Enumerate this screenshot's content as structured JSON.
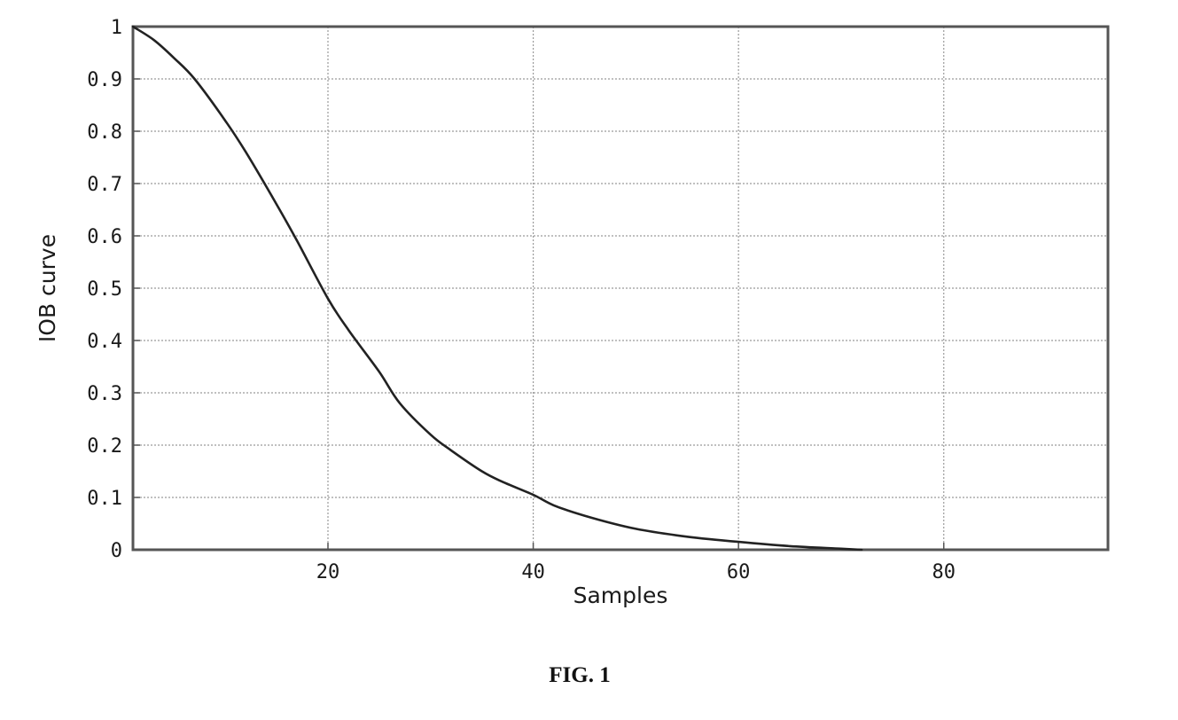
{
  "figure": {
    "caption": "FIG. 1"
  },
  "chart_data": {
    "type": "line",
    "title": "",
    "xlabel": "Samples",
    "ylabel": "IOB curve",
    "xlim": [
      1,
      96
    ],
    "ylim": [
      0,
      1
    ],
    "grid": true,
    "xticks": [
      20,
      40,
      60,
      80
    ],
    "xtick_labels": [
      "20",
      "40",
      "60",
      "80"
    ],
    "yticks": [
      0,
      0.1,
      0.2,
      0.3,
      0.4,
      0.5,
      0.6,
      0.7,
      0.8,
      0.9,
      1
    ],
    "ytick_labels": [
      "0",
      "0.1",
      "0.2",
      "0.3",
      "0.4",
      "0.5",
      "0.6",
      "0.7",
      "0.8",
      "0.9",
      "1"
    ],
    "series": [
      {
        "x": [
          1,
          3,
          5,
          7,
          10,
          12,
          15,
          17,
          20,
          22,
          25,
          27,
          30,
          32,
          35,
          37,
          40,
          42,
          45,
          50,
          55,
          60,
          65,
          70,
          72
        ],
        "values": [
          1.0,
          0.975,
          0.94,
          0.9,
          0.82,
          0.76,
          0.66,
          0.59,
          0.48,
          0.42,
          0.34,
          0.28,
          0.22,
          0.19,
          0.15,
          0.13,
          0.105,
          0.085,
          0.065,
          0.04,
          0.025,
          0.015,
          0.007,
          0.002,
          0.0
        ]
      }
    ],
    "colors": {
      "line": "#222222",
      "grid": "#9a9a9a",
      "frame": "#555555"
    }
  }
}
